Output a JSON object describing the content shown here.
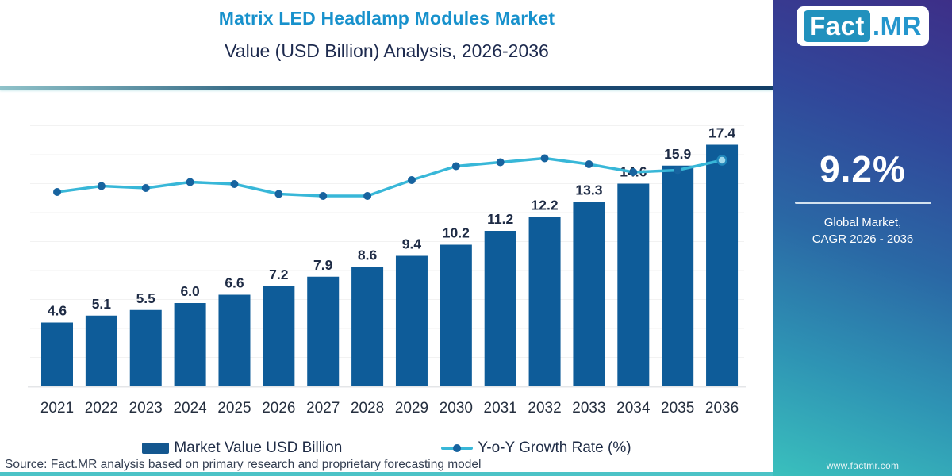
{
  "title": {
    "line1": "Matrix LED Headlamp Modules Market",
    "line2": "Value (USD Billion) Analysis, 2026-2036"
  },
  "legend": {
    "bar": "Market Value USD Billion",
    "line": "Y-o-Y Growth Rate (%)"
  },
  "source_note": "Source: Fact.MR analysis based on primary research and proprietary forecasting model",
  "side_panel": {
    "logo": {
      "fact": "Fact",
      "mr": ".MR"
    },
    "stat_value": "9.2%",
    "stat_caption_line1": "Global Market,",
    "stat_caption_line2": "CAGR 2026 - 2036",
    "website": "www.factmr.com"
  },
  "colors": {
    "bar_fill": "#0e5c99",
    "line_stroke": "#38b7d8",
    "marker_fill": "#17639f",
    "marker_last_fill": "#9fd9ec",
    "marker_last_stroke": "#1f86ba",
    "value_label": "#1e2b45",
    "axis_label": "#252f3f",
    "gridline": "#f2f2f2",
    "baseline": "#e4e6e8",
    "title_accent": "#1791cc",
    "title_dark": "#1d2a4e",
    "bottom_strip": "#4cc3c7"
  },
  "chart_data": {
    "type": "bar+line combo",
    "title": "Matrix LED Headlamp Modules Market Value (USD Billion) Analysis, 2026-2036",
    "categories": [
      "2021",
      "2022",
      "2023",
      "2024",
      "2025",
      "2026",
      "2027",
      "2028",
      "2029",
      "2030",
      "2031",
      "2032",
      "2033",
      "2034",
      "2035",
      "2036"
    ],
    "series": [
      {
        "name": "Market Value USD Billion",
        "type": "bar",
        "values": [
          4.6,
          5.1,
          5.5,
          6.0,
          6.6,
          7.2,
          7.9,
          8.6,
          9.4,
          10.2,
          11.2,
          12.2,
          13.3,
          14.6,
          15.9,
          17.4
        ],
        "data_labels": true
      },
      {
        "name": "Y-o-Y Growth Rate (%)",
        "type": "line",
        "values": [
          9.0,
          9.3,
          9.2,
          9.5,
          9.4,
          8.9,
          8.8,
          8.8,
          9.6,
          10.3,
          10.5,
          10.7,
          10.4,
          10.0,
          10.1,
          10.6
        ],
        "note": "secondary axis not labeled in figure; values estimated from line position"
      }
    ],
    "xlabel": "",
    "ylabel": "",
    "y_axis_visible": false,
    "grid": "faint horizontal gridlines",
    "legend_position": "bottom"
  }
}
